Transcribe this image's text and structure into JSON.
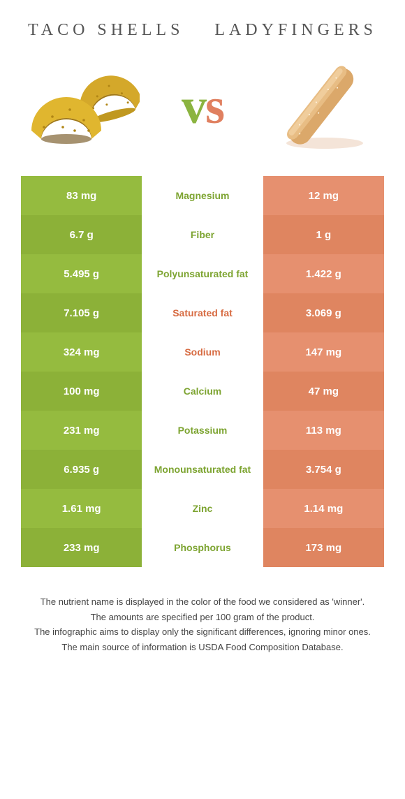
{
  "colors": {
    "left_food": "#95bb3f",
    "left_food_alt": "#8cb138",
    "right_food": "#e6906f",
    "right_food_alt": "#df8560",
    "winner_left_text": "#7da431",
    "winner_right_text": "#d76b42"
  },
  "header": {
    "left_title": "Taco shells",
    "right_title": "Ladyfingers"
  },
  "rows": [
    {
      "left": "83 mg",
      "label": "Magnesium",
      "right": "12 mg",
      "winner": "left"
    },
    {
      "left": "6.7 g",
      "label": "Fiber",
      "right": "1 g",
      "winner": "left"
    },
    {
      "left": "5.495 g",
      "label": "Polyunsaturated fat",
      "right": "1.422 g",
      "winner": "left"
    },
    {
      "left": "7.105 g",
      "label": "Saturated fat",
      "right": "3.069 g",
      "winner": "right"
    },
    {
      "left": "324 mg",
      "label": "Sodium",
      "right": "147 mg",
      "winner": "right"
    },
    {
      "left": "100 mg",
      "label": "Calcium",
      "right": "47 mg",
      "winner": "left"
    },
    {
      "left": "231 mg",
      "label": "Potassium",
      "right": "113 mg",
      "winner": "left"
    },
    {
      "left": "6.935 g",
      "label": "Monounsaturated fat",
      "right": "3.754 g",
      "winner": "left"
    },
    {
      "left": "1.61 mg",
      "label": "Zinc",
      "right": "1.14 mg",
      "winner": "left"
    },
    {
      "left": "233 mg",
      "label": "Phosphorus",
      "right": "173 mg",
      "winner": "left"
    }
  ],
  "footnotes": [
    "The nutrient name is displayed in the color of the food we considered as 'winner'.",
    "The amounts are specified per 100 gram of the product.",
    "The infographic aims to display only the significant differences, ignoring minor ones.",
    "The main source of information is USDA Food Composition Database."
  ]
}
